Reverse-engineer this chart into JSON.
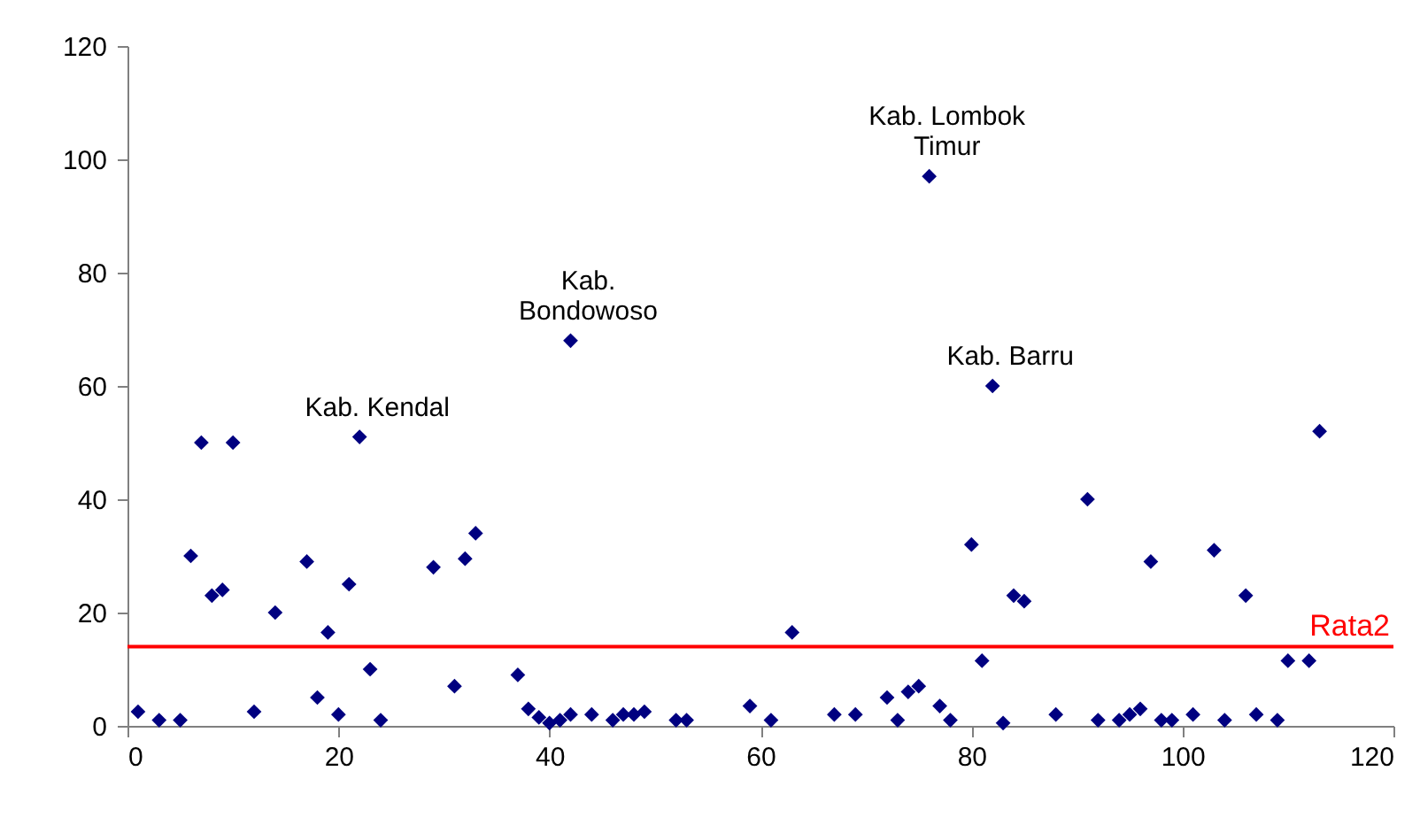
{
  "chart_data": {
    "type": "scatter",
    "marker": "diamond",
    "grid": false,
    "x": [
      1,
      3,
      5,
      6,
      7,
      8,
      9,
      10,
      12,
      14,
      17,
      18,
      19,
      20,
      21,
      22,
      23,
      24,
      29,
      31,
      32,
      33,
      37,
      38,
      39,
      40,
      41,
      42,
      42,
      44,
      46,
      47,
      48,
      49,
      52,
      53,
      59,
      61,
      63,
      67,
      69,
      72,
      73,
      74,
      75,
      76,
      77,
      78,
      80,
      81,
      82,
      83,
      84,
      85,
      88,
      91,
      92,
      94,
      95,
      96,
      97,
      98,
      99,
      101,
      103,
      104,
      106,
      107,
      109,
      110,
      112,
      113
    ],
    "series": [
      {
        "color": "#000080",
        "values": [
          2.5,
          1,
          1,
          30,
          50,
          23,
          24,
          50,
          2.5,
          20,
          29,
          5,
          16.5,
          2,
          25,
          51,
          10,
          1,
          28,
          7,
          29.5,
          34,
          9,
          3,
          1.5,
          0.5,
          1,
          2,
          68,
          2,
          1,
          2,
          2,
          2.5,
          1,
          1,
          3.5,
          1,
          16.5,
          2,
          2,
          5,
          1,
          6,
          7,
          97,
          3.5,
          1,
          32,
          11.5,
          60,
          0.5,
          23,
          22,
          2,
          40,
          1,
          1,
          2,
          3,
          29,
          1,
          1,
          2,
          31,
          1,
          23,
          2,
          1,
          11.5,
          11.5,
          52
        ]
      }
    ],
    "xlim": [
      0,
      120
    ],
    "xticks": [
      0,
      20,
      40,
      60,
      80,
      100,
      120
    ],
    "ylim": [
      0,
      120
    ],
    "yticks": [
      0,
      20,
      40,
      60,
      80,
      100,
      120
    ],
    "ref_lines": [
      {
        "axis": "y",
        "value": 14,
        "label": "Rata2",
        "color": "#ff0000"
      }
    ],
    "annotations": [
      {
        "text": "Kab. Kendal",
        "x": 22,
        "y": 51
      },
      {
        "text": "Kab.\nBondowoso",
        "x": 42,
        "y": 68
      },
      {
        "text": "Kab. Lombok\nTimur",
        "x": 76,
        "y": 97
      },
      {
        "text": "Kab. Barru",
        "x": 82,
        "y": 60
      }
    ]
  }
}
